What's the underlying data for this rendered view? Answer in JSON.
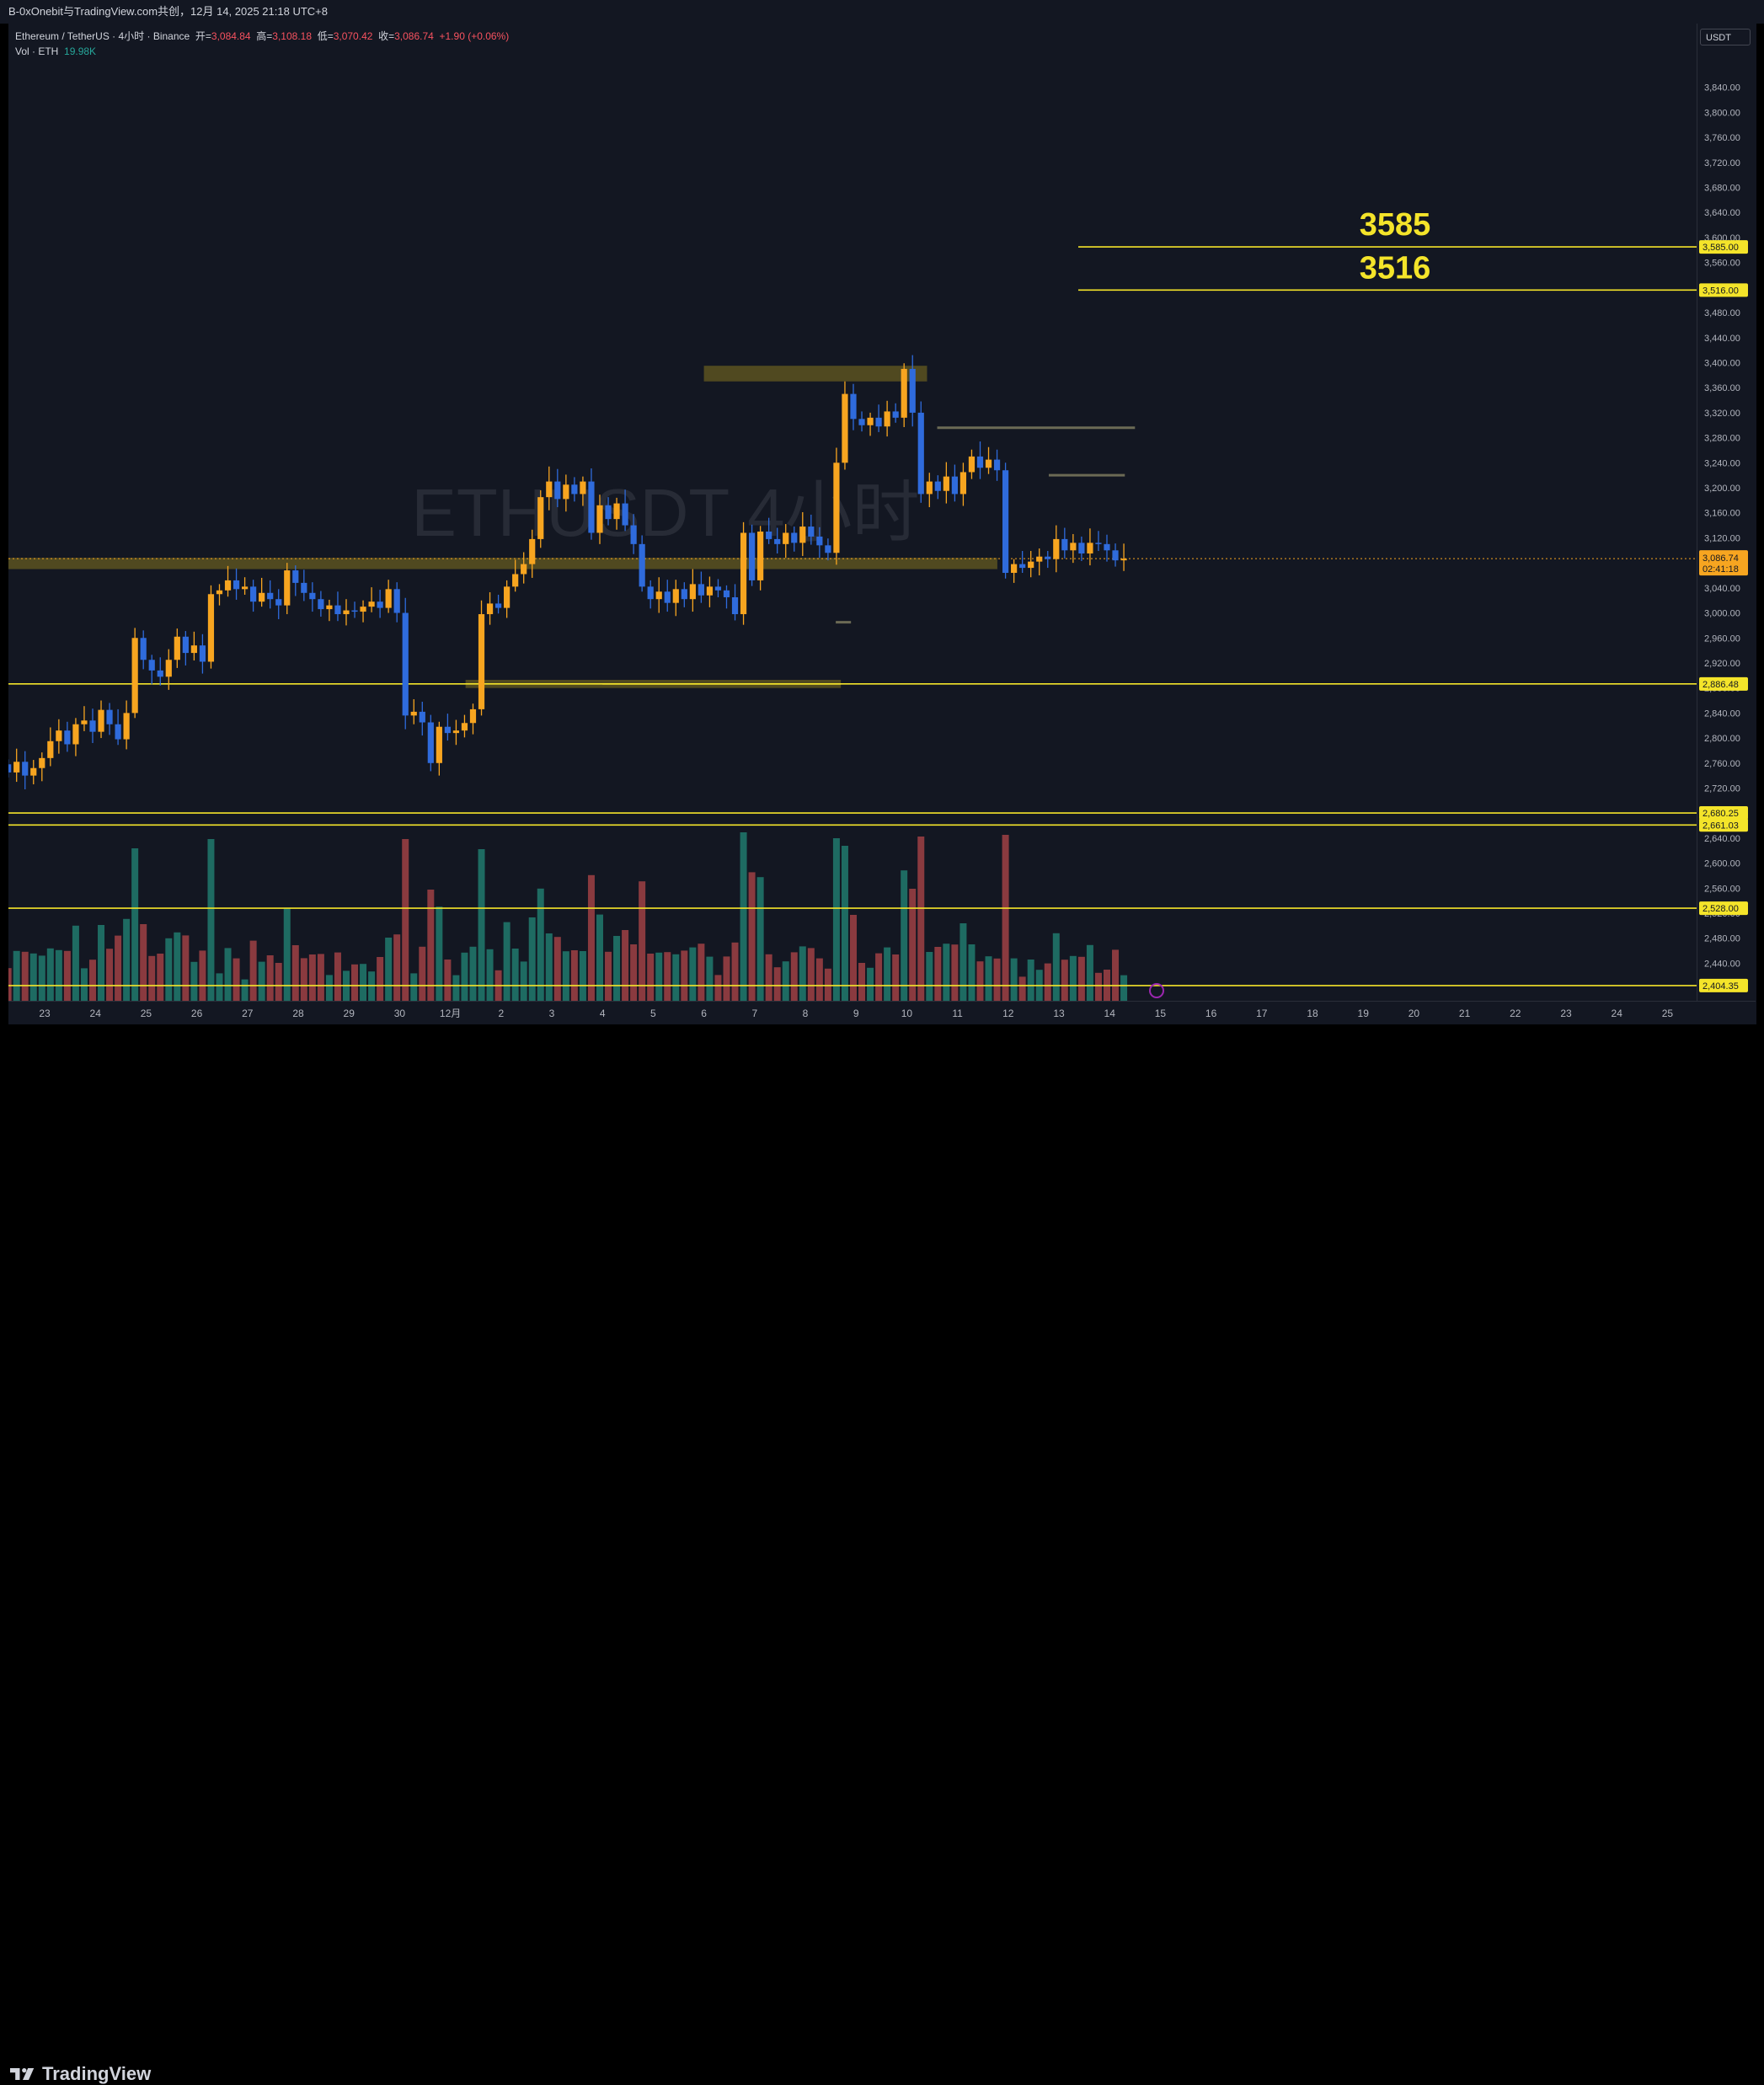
{
  "window": {
    "title": "B-0xOnebit与TradingView.com共创，12月 14, 2025 21:18 UTC+8"
  },
  "legend": {
    "symbol": "Ethereum / TetherUS · 4小时 · Binance",
    "open_label": "开=",
    "open": "3,084.84",
    "high_label": "高=",
    "high": "3,108.18",
    "low_label": "低=",
    "low": "3,070.42",
    "close_label": "收=",
    "close": "3,086.74",
    "change": "+1.90 (+0.06%)",
    "vol_label": "Vol · ETH",
    "vol_value": "19.98K"
  },
  "watermark": "ETHUSDT 4小时",
  "currency": "USDT",
  "brand": "TradingView",
  "colors": {
    "background": "#131722",
    "up": "#f7a520",
    "down": "#2f6bdc",
    "vol_up": "#1e6b62",
    "vol_down": "#8a3a3f",
    "level": "#f4e42a",
    "zone": "#5c5220"
  },
  "chart_data": {
    "type": "candlestick",
    "ylim": [
      2380,
      3880
    ],
    "y_ticks": [
      "2,440.00",
      "2,480.00",
      "2,520.00",
      "2,560.00",
      "2,600.00",
      "2,640.00",
      "2,680.00",
      "2,720.00",
      "2,760.00",
      "2,800.00",
      "2,840.00",
      "2,880.00",
      "2,920.00",
      "2,960.00",
      "3,000.00",
      "3,040.00",
      "3,080.00",
      "3,120.00",
      "3,160.00",
      "3,200.00",
      "3,240.00",
      "3,280.00",
      "3,320.00",
      "3,360.00",
      "3,400.00",
      "3,440.00",
      "3,480.00",
      "3,520.00",
      "3,560.00",
      "3,600.00",
      "3,640.00",
      "3,680.00",
      "3,720.00",
      "3,760.00",
      "3,800.00",
      "3,840.00"
    ],
    "x_ticks": [
      "23",
      "24",
      "25",
      "26",
      "27",
      "28",
      "29",
      "30",
      "12月",
      "2",
      "3",
      "4",
      "5",
      "6",
      "7",
      "8",
      "9",
      "10",
      "11",
      "12",
      "13",
      "14",
      "15",
      "16",
      "17",
      "18",
      "19",
      "20",
      "21",
      "22",
      "23",
      "24",
      "25"
    ],
    "levels": [
      {
        "value": 3585,
        "label": "3,585.00",
        "annotation": "3585"
      },
      {
        "value": 3516,
        "label": "3,516.00",
        "annotation": "3516"
      },
      {
        "value": 2886.48,
        "label": "2,886.48"
      },
      {
        "value": 2680.25,
        "label": "2,680.25"
      },
      {
        "value": 2661.03,
        "label": "2,661.03"
      },
      {
        "value": 2528.0,
        "label": "2,528.00"
      },
      {
        "value": 2404.35,
        "label": "2,404.35"
      }
    ],
    "current_price": {
      "value": 3086.74,
      "label": "3,086.74",
      "countdown": "02:41:18"
    },
    "zones": [
      {
        "x0": 0,
        "x1": 19.5,
        "y0": 3070,
        "y1": 3088
      },
      {
        "x0": 13,
        "x1": 17.4,
        "y0": 3370,
        "y1": 3395
      },
      {
        "x0": 8.3,
        "x1": 15.7,
        "y0": 2880,
        "y1": 2893
      }
    ],
    "segments": [
      {
        "x0": 11,
        "x1": 15.7,
        "y": 2886.48
      },
      {
        "x0": 17.6,
        "x1": 21.5,
        "y": 3296
      },
      {
        "x0": 19.8,
        "x1": 21.3,
        "y": 3220
      },
      {
        "x0": 15.6,
        "x1": 15.9,
        "y": 2985
      }
    ],
    "candles": [
      [
        2758,
        2745
      ],
      [
        2745,
        2762
      ],
      [
        2762,
        2740
      ],
      [
        2740,
        2752
      ],
      [
        2752,
        2768
      ],
      [
        2768,
        2795
      ],
      [
        2795,
        2812
      ],
      [
        2812,
        2790
      ],
      [
        2790,
        2822
      ],
      [
        2822,
        2828
      ],
      [
        2828,
        2810
      ],
      [
        2810,
        2845
      ],
      [
        2845,
        2822
      ],
      [
        2822,
        2798
      ],
      [
        2798,
        2840
      ],
      [
        2840,
        2960
      ],
      [
        2960,
        2925
      ],
      [
        2925,
        2908
      ],
      [
        2908,
        2898
      ],
      [
        2898,
        2925
      ],
      [
        2925,
        2962
      ],
      [
        2962,
        2936
      ],
      [
        2936,
        2948
      ],
      [
        2948,
        2922
      ],
      [
        2922,
        3030
      ],
      [
        3030,
        3036
      ],
      [
        3036,
        3052
      ],
      [
        3052,
        3038
      ],
      [
        3038,
        3042
      ],
      [
        3042,
        3018
      ],
      [
        3018,
        3032
      ],
      [
        3032,
        3022
      ],
      [
        3022,
        3012
      ],
      [
        3012,
        3068
      ],
      [
        3068,
        3048
      ],
      [
        3048,
        3032
      ],
      [
        3032,
        3022
      ],
      [
        3022,
        3006
      ],
      [
        3006,
        3012
      ],
      [
        3012,
        2998
      ],
      [
        2998,
        3004
      ],
      [
        3004,
        3002
      ],
      [
        3002,
        3010
      ],
      [
        3010,
        3018
      ],
      [
        3018,
        3008
      ],
      [
        3008,
        3038
      ],
      [
        3038,
        3000
      ],
      [
        3000,
        2836
      ],
      [
        2836,
        2842
      ],
      [
        2842,
        2825
      ],
      [
        2825,
        2760
      ],
      [
        2760,
        2818
      ],
      [
        2818,
        2808
      ],
      [
        2808,
        2812
      ],
      [
        2812,
        2824
      ],
      [
        2824,
        2846
      ],
      [
        2846,
        2998
      ],
      [
        2998,
        3015
      ],
      [
        3015,
        3008
      ],
      [
        3008,
        3042
      ],
      [
        3042,
        3062
      ],
      [
        3062,
        3078
      ],
      [
        3078,
        3118
      ],
      [
        3118,
        3185
      ],
      [
        3185,
        3210
      ],
      [
        3210,
        3182
      ],
      [
        3182,
        3205
      ],
      [
        3205,
        3190
      ],
      [
        3190,
        3210
      ],
      [
        3210,
        3128
      ],
      [
        3128,
        3172
      ],
      [
        3172,
        3150
      ],
      [
        3150,
        3175
      ],
      [
        3175,
        3140
      ],
      [
        3140,
        3110
      ],
      [
        3110,
        3042
      ],
      [
        3042,
        3022
      ],
      [
        3022,
        3034
      ],
      [
        3034,
        3016
      ],
      [
        3016,
        3038
      ],
      [
        3038,
        3022
      ],
      [
        3022,
        3046
      ],
      [
        3046,
        3028
      ],
      [
        3028,
        3042
      ],
      [
        3042,
        3036
      ],
      [
        3036,
        3025
      ],
      [
        3025,
        2998
      ],
      [
        2998,
        3128
      ],
      [
        3128,
        3052
      ],
      [
        3052,
        3130
      ],
      [
        3130,
        3118
      ],
      [
        3118,
        3110
      ],
      [
        3110,
        3128
      ],
      [
        3128,
        3112
      ],
      [
        3112,
        3138
      ],
      [
        3138,
        3122
      ],
      [
        3122,
        3108
      ],
      [
        3108,
        3096
      ],
      [
        3096,
        3240
      ],
      [
        3240,
        3350
      ],
      [
        3350,
        3310
      ],
      [
        3310,
        3300
      ],
      [
        3300,
        3312
      ],
      [
        3312,
        3298
      ],
      [
        3298,
        3322
      ],
      [
        3322,
        3312
      ],
      [
        3312,
        3390
      ],
      [
        3390,
        3320
      ],
      [
        3320,
        3190
      ],
      [
        3190,
        3210
      ],
      [
        3210,
        3195
      ],
      [
        3195,
        3218
      ],
      [
        3218,
        3190
      ],
      [
        3190,
        3225
      ],
      [
        3225,
        3250
      ],
      [
        3250,
        3232
      ],
      [
        3232,
        3245
      ],
      [
        3245,
        3228
      ],
      [
        3228,
        3064
      ],
      [
        3064,
        3078
      ],
      [
        3078,
        3072
      ],
      [
        3072,
        3082
      ],
      [
        3082,
        3090
      ],
      [
        3090,
        3086
      ],
      [
        3086,
        3118
      ],
      [
        3118,
        3100
      ],
      [
        3100,
        3112
      ],
      [
        3112,
        3095
      ],
      [
        3095,
        3112
      ],
      [
        3112,
        3110
      ],
      [
        3110,
        3100
      ],
      [
        3100,
        3084
      ],
      [
        3084,
        3086.74
      ]
    ]
  }
}
